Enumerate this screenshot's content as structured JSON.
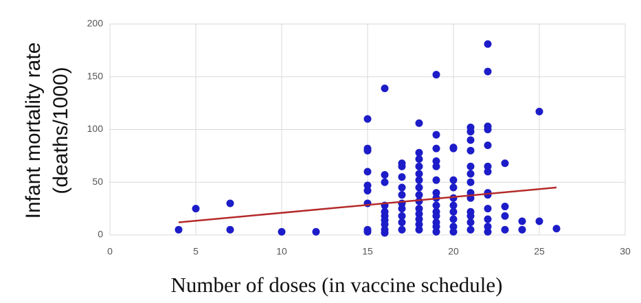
{
  "chart_data": {
    "type": "scatter",
    "xlabel": "Number of doses (in vaccine schedule)",
    "ylabel": [
      "Infant mortality rate",
      "(deaths/1000)"
    ],
    "xlim": [
      0,
      30
    ],
    "xticks": [
      0,
      5,
      10,
      15,
      20,
      25,
      30
    ],
    "ylim": [
      0,
      200
    ],
    "yticks": [
      0,
      50,
      100,
      150,
      200
    ],
    "grid": true,
    "color": "#1c1cc8",
    "x": [
      4,
      5,
      7,
      7,
      10,
      12,
      15,
      15,
      15,
      15,
      15,
      15,
      15,
      15,
      15,
      16,
      16,
      16,
      16,
      16,
      16,
      16,
      16,
      16,
      16,
      17,
      17,
      17,
      17,
      17,
      17,
      17,
      17,
      17,
      17,
      18,
      18,
      18,
      18,
      18,
      18,
      18,
      18,
      18,
      18,
      18,
      18,
      18,
      18,
      19,
      19,
      19,
      19,
      19,
      19,
      19,
      19,
      19,
      19,
      19,
      19,
      19,
      19,
      20,
      20,
      20,
      20,
      20,
      20,
      20,
      20,
      20,
      20,
      21,
      21,
      21,
      21,
      21,
      21,
      21,
      21,
      21,
      21,
      21,
      21,
      21,
      22,
      22,
      22,
      22,
      22,
      22,
      22,
      22,
      22,
      22,
      22,
      22,
      22,
      23,
      23,
      23,
      23,
      24,
      24,
      25,
      25,
      26
    ],
    "y": [
      5,
      25,
      30,
      5,
      3,
      3,
      110,
      82,
      80,
      60,
      47,
      42,
      30,
      5,
      3,
      139,
      57,
      50,
      28,
      22,
      18,
      14,
      10,
      5,
      2,
      68,
      65,
      55,
      45,
      38,
      30,
      25,
      18,
      12,
      5,
      106,
      78,
      72,
      65,
      58,
      52,
      45,
      38,
      32,
      25,
      20,
      15,
      10,
      5,
      152,
      95,
      82,
      70,
      65,
      52,
      40,
      35,
      28,
      22,
      18,
      12,
      8,
      3,
      83,
      82,
      52,
      45,
      35,
      28,
      22,
      15,
      8,
      3,
      102,
      98,
      90,
      80,
      65,
      58,
      50,
      40,
      35,
      22,
      18,
      12,
      5,
      181,
      155,
      103,
      100,
      85,
      65,
      60,
      40,
      38,
      25,
      15,
      8,
      3,
      68,
      27,
      18,
      5,
      13,
      5,
      117,
      13,
      6
    ],
    "trendline": {
      "x": [
        4,
        26
      ],
      "y": [
        12,
        45
      ],
      "color": "#b52a2a"
    }
  }
}
